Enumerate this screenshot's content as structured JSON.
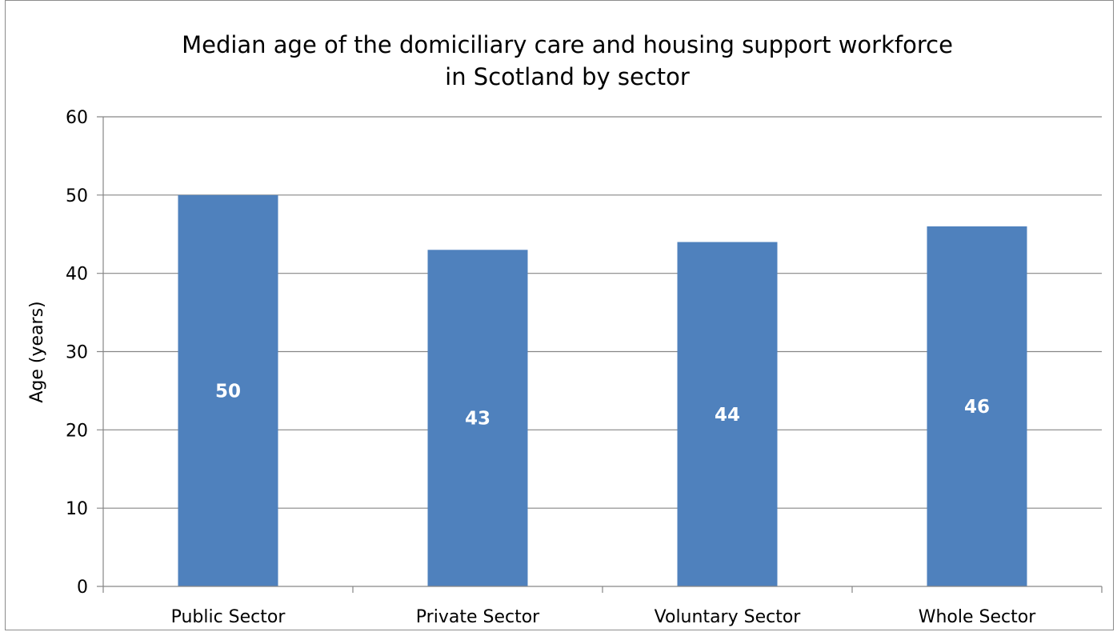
{
  "chart_data": {
    "type": "bar",
    "title": "Median age of the domiciliary care and housing support workforce in Scotland by sector",
    "title_lines": [
      "Median age of the domiciliary care and housing support workforce",
      "in Scotland by sector"
    ],
    "xlabel": "",
    "ylabel": "Age (years)",
    "categories": [
      "Public Sector",
      "Private Sector",
      "Voluntary Sector",
      "Whole Sector"
    ],
    "values": [
      50,
      43,
      44,
      46
    ],
    "data_labels": [
      "50",
      "43",
      "44",
      "46"
    ],
    "ylim": [
      0,
      60
    ],
    "yticks": [
      "0",
      "10",
      "20",
      "30",
      "40",
      "50",
      "60"
    ],
    "grid": true,
    "legend": "none",
    "bar_color": "#4F81BD",
    "gridline_color": "#868686",
    "data_label_color": "#FFFFFF"
  }
}
